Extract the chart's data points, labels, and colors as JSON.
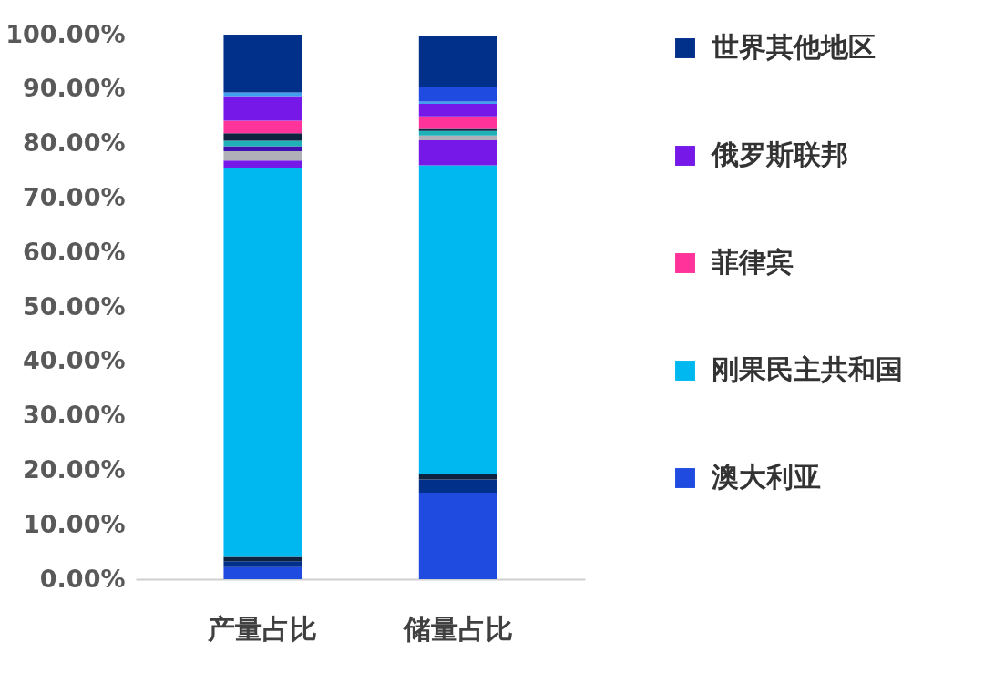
{
  "chart_data": {
    "type": "bar",
    "stacked": true,
    "categories": [
      "产量占比",
      "储量占比"
    ],
    "ylim": [
      0,
      100
    ],
    "yticks": [
      {
        "value": 0,
        "label": "0.00%"
      },
      {
        "value": 10,
        "label": "10.00%"
      },
      {
        "value": 20,
        "label": "20.00%"
      },
      {
        "value": 30,
        "label": "30.00%"
      },
      {
        "value": 40,
        "label": "40.00%"
      },
      {
        "value": 50,
        "label": "50.00%"
      },
      {
        "value": 60,
        "label": "60.00%"
      },
      {
        "value": 70,
        "label": "70.00%"
      },
      {
        "value": 80,
        "label": "80.00%"
      },
      {
        "value": 90,
        "label": "90.00%"
      },
      {
        "value": 100,
        "label": "100.00%"
      }
    ],
    "grid": false,
    "legend": "right",
    "series": [
      {
        "name": "澳大利亚",
        "color": "#1f4be0",
        "values": [
          2.2,
          15.9
        ]
      },
      {
        "color": "#00308a",
        "values": [
          1.1,
          2.4
        ]
      },
      {
        "color": "#0d2340",
        "values": [
          0.8,
          1.1
        ]
      },
      {
        "name": "刚果民主共和国",
        "color": "#00b8f0",
        "values": [
          71.3,
          56.6
        ]
      },
      {
        "color": "#7518e8",
        "values": [
          1.5,
          4.6
        ]
      },
      {
        "color": "#b0b0b8",
        "values": [
          1.7,
          0.9
        ]
      },
      {
        "color": "#4010b0",
        "values": [
          0.9,
          null
        ]
      },
      {
        "color": "#20b0b8",
        "values": [
          1.0,
          0.8
        ]
      },
      {
        "color": "#0d2340",
        "values": [
          1.4,
          0.4
        ]
      },
      {
        "name": "菲律宾",
        "color": "#ff3399",
        "values": [
          2.3,
          2.3
        ]
      },
      {
        "name": "俄罗斯联邦",
        "color": "#7518e8",
        "values": [
          4.5,
          2.3
        ]
      },
      {
        "color": "#3fa0f0",
        "values": [
          0.7,
          0.4
        ]
      },
      {
        "color": "#1f4be0",
        "values": [
          null,
          2.6
        ]
      },
      {
        "name": "世界其他地区",
        "color": "#00308a",
        "values": [
          10.6,
          9.5
        ]
      }
    ]
  }
}
